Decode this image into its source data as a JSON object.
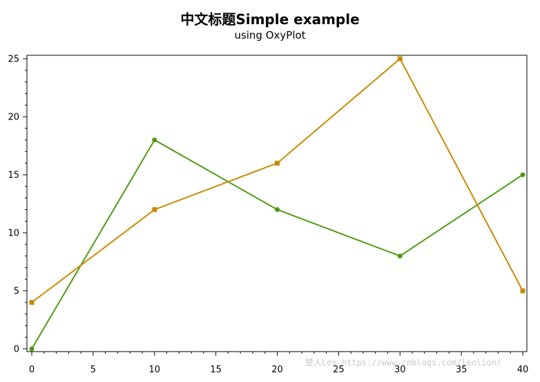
{
  "chart_data": {
    "type": "line",
    "title": "中文标题Simple example",
    "subtitle": "using OxyPlot",
    "xlabel": "",
    "ylabel": "",
    "xlim": [
      0,
      40
    ],
    "ylim": [
      0,
      25
    ],
    "x_ticks": [
      0,
      5,
      10,
      15,
      20,
      25,
      30,
      35,
      40
    ],
    "y_ticks": [
      0,
      5,
      10,
      15,
      20,
      25
    ],
    "grid": false,
    "series": [
      {
        "x": [
          0,
          10,
          20,
          30,
          40
        ],
        "values": [
          0,
          18,
          12,
          8,
          15
        ],
        "color": "#4f9a15",
        "marker": "circle"
      },
      {
        "x": [
          0,
          10,
          20,
          30,
          40
        ],
        "values": [
          4,
          12,
          16,
          25,
          5
        ],
        "color": "#c88a00",
        "marker": "square"
      }
    ]
  },
  "watermark": "楚人Leo   https://www.cnblogs.com/leolion/"
}
